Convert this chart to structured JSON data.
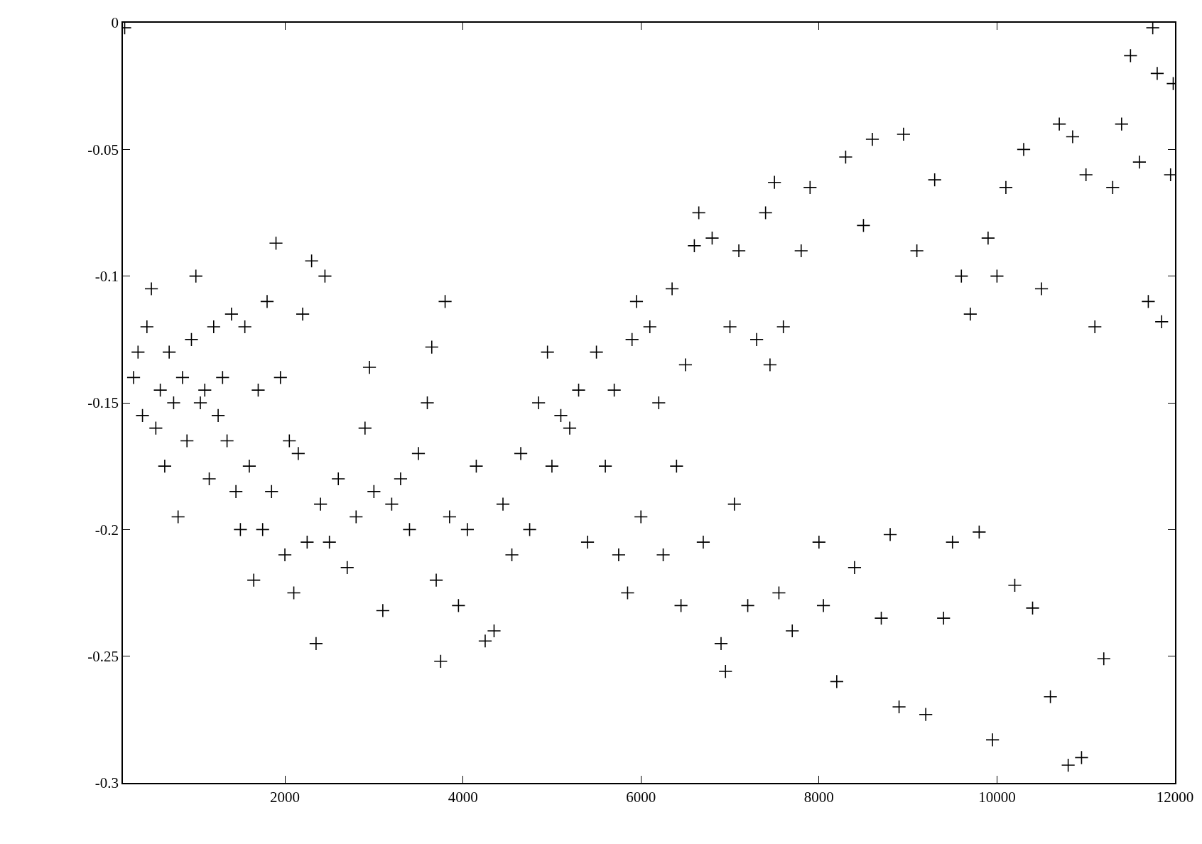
{
  "chart_data": {
    "type": "scatter",
    "marker": "cross",
    "xlim": [
      180,
      12000
    ],
    "xticks": [
      2000,
      4000,
      6000,
      8000,
      10000,
      12000
    ],
    "ylim": [
      -0.3,
      0
    ],
    "yticks": [
      0,
      -0.05,
      -0.1,
      -0.15,
      -0.2,
      -0.25,
      -0.3
    ],
    "series": [
      {
        "color": "#000000",
        "x": [
          200,
          300,
          350,
          400,
          450,
          500,
          550,
          600,
          650,
          700,
          750,
          800,
          850,
          900,
          950,
          1000,
          1050,
          1100,
          1150,
          1200,
          1250,
          1300,
          1350,
          1400,
          1450,
          1500,
          1550,
          1600,
          1650,
          1700,
          1750,
          1800,
          1850,
          1900,
          1950,
          2000,
          2050,
          2100,
          2150,
          2200,
          2250,
          2300,
          2350,
          2400,
          2450,
          2500,
          2600,
          2700,
          2800,
          2900,
          2950,
          3000,
          3100,
          3200,
          3300,
          3400,
          3500,
          3600,
          3650,
          3700,
          3750,
          3800,
          3850,
          3950,
          4050,
          4150,
          4250,
          4350,
          4450,
          4550,
          4650,
          4750,
          4850,
          4950,
          5000,
          5100,
          5200,
          5300,
          5400,
          5500,
          5600,
          5700,
          5750,
          5850,
          5900,
          5950,
          6000,
          6100,
          6200,
          6250,
          6350,
          6400,
          6450,
          6500,
          6600,
          6650,
          6700,
          6800,
          6900,
          6950,
          7000,
          7050,
          7100,
          7200,
          7300,
          7400,
          7450,
          7500,
          7550,
          7600,
          7700,
          7800,
          7900,
          8000,
          8050,
          8200,
          8300,
          8400,
          8500,
          8600,
          8700,
          8800,
          8900,
          8950,
          9100,
          9200,
          9300,
          9400,
          9500,
          9600,
          9700,
          9800,
          9900,
          9950,
          10000,
          10100,
          10200,
          10300,
          10400,
          10500,
          10600,
          10700,
          10800,
          10850,
          10950,
          11000,
          11100,
          11200,
          11300,
          11400,
          11500,
          11600,
          11700,
          11750,
          11800,
          11850,
          11950,
          11980
        ],
        "values": [
          -0.002,
          -0.14,
          -0.13,
          -0.155,
          -0.12,
          -0.105,
          -0.16,
          -0.145,
          -0.175,
          -0.13,
          -0.15,
          -0.195,
          -0.14,
          -0.165,
          -0.125,
          -0.1,
          -0.15,
          -0.145,
          -0.18,
          -0.12,
          -0.155,
          -0.14,
          -0.165,
          -0.115,
          -0.185,
          -0.2,
          -0.12,
          -0.175,
          -0.22,
          -0.145,
          -0.2,
          -0.11,
          -0.185,
          -0.087,
          -0.14,
          -0.21,
          -0.165,
          -0.225,
          -0.17,
          -0.115,
          -0.205,
          -0.094,
          -0.245,
          -0.19,
          -0.1,
          -0.205,
          -0.18,
          -0.215,
          -0.195,
          -0.16,
          -0.136,
          -0.185,
          -0.232,
          -0.19,
          -0.18,
          -0.2,
          -0.17,
          -0.15,
          -0.128,
          -0.22,
          -0.252,
          -0.11,
          -0.195,
          -0.23,
          -0.2,
          -0.175,
          -0.244,
          -0.24,
          -0.19,
          -0.21,
          -0.17,
          -0.2,
          -0.15,
          -0.13,
          -0.175,
          -0.155,
          -0.16,
          -0.145,
          -0.205,
          -0.13,
          -0.175,
          -0.145,
          -0.21,
          -0.225,
          -0.125,
          -0.11,
          -0.195,
          -0.12,
          -0.15,
          -0.21,
          -0.105,
          -0.175,
          -0.23,
          -0.135,
          -0.088,
          -0.075,
          -0.205,
          -0.085,
          -0.245,
          -0.256,
          -0.12,
          -0.19,
          -0.09,
          -0.23,
          -0.125,
          -0.075,
          -0.135,
          -0.063,
          -0.225,
          -0.12,
          -0.24,
          -0.09,
          -0.065,
          -0.205,
          -0.23,
          -0.26,
          -0.053,
          -0.215,
          -0.08,
          -0.046,
          -0.235,
          -0.202,
          -0.27,
          -0.044,
          -0.09,
          -0.273,
          -0.062,
          -0.235,
          -0.205,
          -0.1,
          -0.115,
          -0.201,
          -0.085,
          -0.283,
          -0.1,
          -0.065,
          -0.222,
          -0.05,
          -0.231,
          -0.105,
          -0.266,
          -0.04,
          -0.293,
          -0.045,
          -0.29,
          -0.06,
          -0.12,
          -0.251,
          -0.065,
          -0.04,
          -0.013,
          -0.055,
          -0.11,
          -0.002,
          -0.02,
          -0.118,
          -0.06,
          -0.024
        ]
      }
    ]
  }
}
